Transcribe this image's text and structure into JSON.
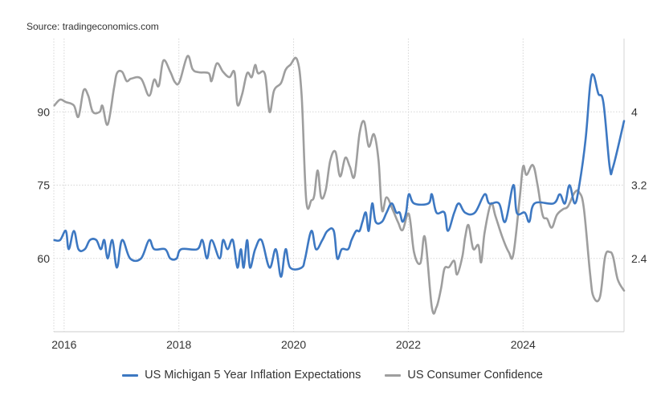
{
  "source": "Source: tradingeconomics.com",
  "chart_data": {
    "type": "line",
    "title": "",
    "xlabel": "",
    "x_ticks": [
      "2016",
      "2018",
      "2020",
      "2022",
      "2024"
    ],
    "xlim": [
      2015.82,
      2025.76
    ],
    "left_axis": {
      "ticks": [
        "60",
        "75",
        "90"
      ],
      "tick_values": [
        60,
        75,
        90
      ],
      "ylim": [
        45,
        105
      ]
    },
    "right_axis": {
      "ticks": [
        "2.4",
        "3.2",
        "4"
      ],
      "tick_values": [
        2.4,
        3.2,
        4
      ],
      "ylim": [
        1.6,
        4.8
      ]
    },
    "grid": true,
    "legend_placement": "bottom",
    "series": [
      {
        "name": "US Michigan 5 Year Inflation Expectations",
        "axis": "right",
        "color": "#3d78c2",
        "points": [
          [
            2015.83,
            2.6
          ],
          [
            2015.93,
            2.6
          ],
          [
            2016.03,
            2.7
          ],
          [
            2016.08,
            2.5
          ],
          [
            2016.17,
            2.7
          ],
          [
            2016.25,
            2.5
          ],
          [
            2016.36,
            2.5
          ],
          [
            2016.45,
            2.6
          ],
          [
            2016.56,
            2.6
          ],
          [
            2016.64,
            2.5
          ],
          [
            2016.7,
            2.6
          ],
          [
            2016.76,
            2.4
          ],
          [
            2016.84,
            2.6
          ],
          [
            2016.92,
            2.3
          ],
          [
            2017.01,
            2.6
          ],
          [
            2017.15,
            2.4
          ],
          [
            2017.34,
            2.4
          ],
          [
            2017.48,
            2.6
          ],
          [
            2017.57,
            2.5
          ],
          [
            2017.76,
            2.5
          ],
          [
            2017.85,
            2.4
          ],
          [
            2017.96,
            2.4
          ],
          [
            2018.04,
            2.5
          ],
          [
            2018.32,
            2.5
          ],
          [
            2018.41,
            2.6
          ],
          [
            2018.49,
            2.4
          ],
          [
            2018.57,
            2.6
          ],
          [
            2018.71,
            2.4
          ],
          [
            2018.77,
            2.6
          ],
          [
            2018.85,
            2.5
          ],
          [
            2018.94,
            2.6
          ],
          [
            2019.02,
            2.3
          ],
          [
            2019.08,
            2.5
          ],
          [
            2019.13,
            2.3
          ],
          [
            2019.19,
            2.6
          ],
          [
            2019.24,
            2.3
          ],
          [
            2019.33,
            2.5
          ],
          [
            2019.44,
            2.6
          ],
          [
            2019.58,
            2.3
          ],
          [
            2019.69,
            2.5
          ],
          [
            2019.78,
            2.2
          ],
          [
            2019.86,
            2.5
          ],
          [
            2019.94,
            2.3
          ],
          [
            2020.14,
            2.3
          ],
          [
            2020.2,
            2.4
          ],
          [
            2020.31,
            2.7
          ],
          [
            2020.39,
            2.5
          ],
          [
            2020.5,
            2.6
          ],
          [
            2020.59,
            2.7
          ],
          [
            2020.7,
            2.7
          ],
          [
            2020.76,
            2.4
          ],
          [
            2020.84,
            2.5
          ],
          [
            2020.95,
            2.5
          ],
          [
            2021.01,
            2.6
          ],
          [
            2021.09,
            2.7
          ],
          [
            2021.15,
            2.7
          ],
          [
            2021.2,
            2.8
          ],
          [
            2021.26,
            2.9
          ],
          [
            2021.31,
            2.7
          ],
          [
            2021.37,
            3.0
          ],
          [
            2021.43,
            2.8
          ],
          [
            2021.54,
            2.8
          ],
          [
            2021.62,
            2.9
          ],
          [
            2021.71,
            3.0
          ],
          [
            2021.79,
            2.9
          ],
          [
            2021.85,
            2.9
          ],
          [
            2021.9,
            2.8
          ],
          [
            2021.96,
            2.9
          ],
          [
            2022.01,
            3.1
          ],
          [
            2022.1,
            3.0
          ],
          [
            2022.35,
            3.0
          ],
          [
            2022.41,
            3.1
          ],
          [
            2022.49,
            2.9
          ],
          [
            2022.63,
            2.9
          ],
          [
            2022.69,
            2.7
          ],
          [
            2022.8,
            2.9
          ],
          [
            2022.88,
            3.0
          ],
          [
            2022.99,
            2.9
          ],
          [
            2023.16,
            2.9
          ],
          [
            2023.33,
            3.1
          ],
          [
            2023.41,
            3.0
          ],
          [
            2023.58,
            3.0
          ],
          [
            2023.69,
            2.8
          ],
          [
            2023.83,
            3.2
          ],
          [
            2023.89,
            2.9
          ],
          [
            2024.03,
            2.9
          ],
          [
            2024.11,
            2.8
          ],
          [
            2024.2,
            3.0
          ],
          [
            2024.53,
            3.0
          ],
          [
            2024.64,
            3.1
          ],
          [
            2024.73,
            3.0
          ],
          [
            2024.81,
            3.2
          ],
          [
            2024.9,
            3.0
          ],
          [
            2024.98,
            3.2
          ],
          [
            2025.09,
            3.7
          ],
          [
            2025.17,
            4.3
          ],
          [
            2025.23,
            4.4
          ],
          [
            2025.31,
            4.2
          ],
          [
            2025.4,
            4.1
          ],
          [
            2025.51,
            3.4
          ],
          [
            2025.57,
            3.4
          ],
          [
            2025.76,
            3.9
          ]
        ]
      },
      {
        "name": "US Consumer Confidence",
        "axis": "left",
        "color": "#9e9e9e",
        "points": [
          [
            2015.83,
            91.3
          ],
          [
            2015.93,
            92.5
          ],
          [
            2016.03,
            92.0
          ],
          [
            2016.17,
            91.3
          ],
          [
            2016.25,
            89.0
          ],
          [
            2016.34,
            94.4
          ],
          [
            2016.42,
            93.3
          ],
          [
            2016.5,
            90.0
          ],
          [
            2016.62,
            90.0
          ],
          [
            2016.67,
            91.2
          ],
          [
            2016.76,
            87.4
          ],
          [
            2016.87,
            94.9
          ],
          [
            2016.92,
            97.9
          ],
          [
            2017.01,
            98.2
          ],
          [
            2017.09,
            96.3
          ],
          [
            2017.17,
            96.8
          ],
          [
            2017.34,
            96.8
          ],
          [
            2017.48,
            93.3
          ],
          [
            2017.57,
            96.6
          ],
          [
            2017.65,
            95.3
          ],
          [
            2017.73,
            100.5
          ],
          [
            2017.85,
            98.2
          ],
          [
            2017.93,
            96.1
          ],
          [
            2018.01,
            96.1
          ],
          [
            2018.15,
            101.4
          ],
          [
            2018.24,
            98.7
          ],
          [
            2018.35,
            98.1
          ],
          [
            2018.52,
            97.9
          ],
          [
            2018.57,
            96.3
          ],
          [
            2018.66,
            99.9
          ],
          [
            2018.77,
            98.2
          ],
          [
            2018.88,
            97.1
          ],
          [
            2018.97,
            98.1
          ],
          [
            2019.02,
            91.5
          ],
          [
            2019.1,
            93.5
          ],
          [
            2019.19,
            97.9
          ],
          [
            2019.27,
            97.1
          ],
          [
            2019.33,
            99.6
          ],
          [
            2019.38,
            97.9
          ],
          [
            2019.5,
            97.7
          ],
          [
            2019.58,
            90.0
          ],
          [
            2019.66,
            94.4
          ],
          [
            2019.78,
            95.9
          ],
          [
            2019.86,
            98.6
          ],
          [
            2019.94,
            99.6
          ],
          [
            2020.06,
            100.7
          ],
          [
            2020.14,
            93.3
          ],
          [
            2020.22,
            71.9
          ],
          [
            2020.31,
            71.9
          ],
          [
            2020.36,
            72.9
          ],
          [
            2020.42,
            78.0
          ],
          [
            2020.48,
            72.5
          ],
          [
            2020.56,
            74.0
          ],
          [
            2020.64,
            80.1
          ],
          [
            2020.73,
            81.8
          ],
          [
            2020.81,
            76.8
          ],
          [
            2020.9,
            80.6
          ],
          [
            2020.98,
            78.8
          ],
          [
            2021.06,
            76.8
          ],
          [
            2021.15,
            85.6
          ],
          [
            2021.23,
            88.0
          ],
          [
            2021.31,
            82.9
          ],
          [
            2021.4,
            85.4
          ],
          [
            2021.48,
            80.1
          ],
          [
            2021.54,
            69.9
          ],
          [
            2021.62,
            72.5
          ],
          [
            2021.73,
            69.9
          ],
          [
            2021.82,
            67.4
          ],
          [
            2021.9,
            65.8
          ],
          [
            2022.01,
            69.1
          ],
          [
            2022.1,
            61.2
          ],
          [
            2022.21,
            59.0
          ],
          [
            2022.29,
            64.3
          ],
          [
            2022.41,
            50.0
          ],
          [
            2022.49,
            50.0
          ],
          [
            2022.57,
            53.8
          ],
          [
            2022.63,
            57.9
          ],
          [
            2022.71,
            58.2
          ],
          [
            2022.8,
            59.5
          ],
          [
            2022.85,
            56.7
          ],
          [
            2022.94,
            60.3
          ],
          [
            2022.99,
            64.3
          ],
          [
            2023.05,
            66.8
          ],
          [
            2023.13,
            62.0
          ],
          [
            2023.22,
            62.7
          ],
          [
            2023.27,
            59.2
          ],
          [
            2023.33,
            65.3
          ],
          [
            2023.44,
            71.2
          ],
          [
            2023.52,
            68.6
          ],
          [
            2023.64,
            64.3
          ],
          [
            2023.75,
            61.3
          ],
          [
            2023.83,
            60.8
          ],
          [
            2023.94,
            72.2
          ],
          [
            2024.0,
            78.8
          ],
          [
            2024.06,
            77.1
          ],
          [
            2024.17,
            79.1
          ],
          [
            2024.25,
            75.2
          ],
          [
            2024.34,
            68.9
          ],
          [
            2024.42,
            68.1
          ],
          [
            2024.5,
            66.3
          ],
          [
            2024.59,
            68.9
          ],
          [
            2024.7,
            70.1
          ],
          [
            2024.78,
            70.6
          ],
          [
            2024.9,
            73.5
          ],
          [
            2024.98,
            73.5
          ],
          [
            2025.06,
            70.2
          ],
          [
            2025.17,
            56.6
          ],
          [
            2025.23,
            52.1
          ],
          [
            2025.34,
            52.1
          ],
          [
            2025.43,
            60.3
          ],
          [
            2025.51,
            61.3
          ],
          [
            2025.57,
            60.3
          ],
          [
            2025.65,
            55.7
          ],
          [
            2025.76,
            53.4
          ]
        ]
      }
    ]
  }
}
